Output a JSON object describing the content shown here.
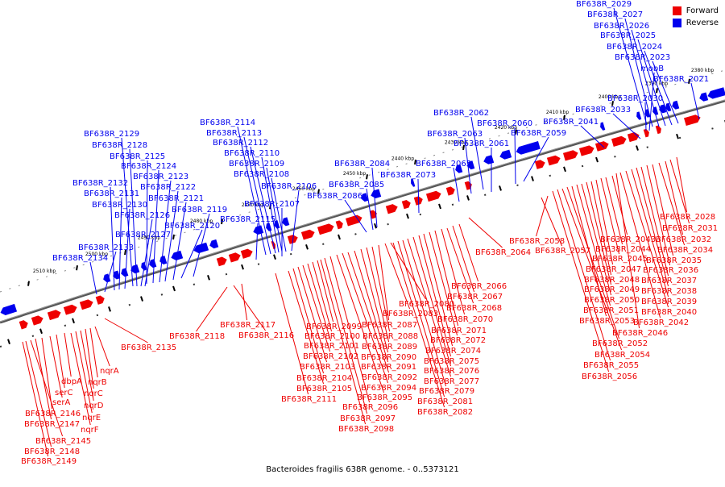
{
  "legend": {
    "forward": {
      "label": "Forward",
      "color": "#ee0000"
    },
    "reverse": {
      "label": "Reverse",
      "color": "#0000ee"
    }
  },
  "caption": "Bacteroides fragilis 638R genome. - 0..5373121",
  "scale_ticks": [
    "2380 kbp",
    "2390 kbp",
    "2400 kbp",
    "2410 kbp",
    "2420 kbp",
    "2430 kbp",
    "2440 kbp",
    "2450 kbp",
    "2460 kbp",
    "2470 kbp",
    "2480 kbp",
    "2490 kbp",
    "2500 kbp",
    "2510 kbp"
  ],
  "reverse_labels": [
    "BF638R_2029",
    "BF638R_2027",
    "BF638R_2026",
    "BF638R_2025",
    "BF638R_2024",
    "BF638R_2023",
    "mobB",
    "BF638R_2021",
    "BF638R_2030",
    "BF638R_2033",
    "BF638R_2041",
    "BF638R_2062",
    "BF638R_2060",
    "BF638R_2063",
    "BF638R_2061",
    "BF638R_2059",
    "BF638R_2065",
    "BF638R_2073",
    "BF638R_2084",
    "BF638R_2085",
    "BF638R_2086",
    "BF638R_2114",
    "BF638R_2113",
    "BF638R_2112",
    "BF638R_2110",
    "BF638R_2109",
    "BF638R_2108",
    "BF638R_2106",
    "BF638R_2107",
    "BF638R_2115",
    "BF638R_2129",
    "BF638R_2128",
    "BF638R_2125",
    "BF638R_2124",
    "BF638R_2123",
    "BF638R_2122",
    "BF638R_2132",
    "BF638R_2131",
    "BF638R_2121",
    "BF638R_2130",
    "BF638R_2119",
    "BF638R_2126",
    "BF638R_2120",
    "BF638R_2127",
    "BF638R_2133",
    "BF638R_2134"
  ],
  "forward_labels": [
    "BF638R_2028",
    "BF638R_2031",
    "BF638R_2032",
    "BF638R_2034",
    "BF638R_2035",
    "BF638R_2036",
    "BF638R_2037",
    "BF638R_2038",
    "BF638R_2039",
    "BF638R_2040",
    "BF638R_2042",
    "BF638R_2046",
    "BF638R_2043",
    "BF638R_2044",
    "BF638R_2045",
    "BF638R_2047",
    "BF638R_2048",
    "BF638R_2049",
    "BF638R_2050",
    "BF638R_2051",
    "BF638R_2053",
    "BF638R_2052",
    "BF638R_2054",
    "BF638R_2055",
    "BF638R_2056",
    "BF638R_2058",
    "BF638R_2057",
    "BF638R_2064",
    "BF638R_2066",
    "BF638R_2067",
    "BF638R_2068",
    "BF638R_2070",
    "BF638R_2071",
    "BF638R_2072",
    "BF638R_2074",
    "BF638R_2075",
    "BF638R_2076",
    "BF638R_2077",
    "BF638R_2079",
    "BF638R_2081",
    "BF638R_2082",
    "BF638R_2080",
    "BF638R_2083",
    "BF638R_2087",
    "BF638R_2088",
    "BF638R_2089",
    "BF638R_2090",
    "BF638R_2091",
    "BF638R_2092",
    "BF638R_2094",
    "BF638R_2095",
    "BF638R_2096",
    "BF638R_2097",
    "BF638R_2098",
    "BF638R_2099",
    "BF638R_2100",
    "BF638R_2101",
    "BF638R_2102",
    "BF638R_2103",
    "BF638R_2104",
    "BF638R_2105",
    "BF638R_2111",
    "BF638R_2117",
    "BF638R_2116",
    "BF638R_2118",
    "BF638R_2135",
    "nqrA",
    "nqrB",
    "nqrC",
    "nqrD",
    "nqrE",
    "nqrF",
    "dbpA",
    "serC",
    "serA",
    "BF638R_2146",
    "BF638R_2147",
    "BF638R_2145",
    "BF638R_2148",
    "BF638R_2149"
  ]
}
